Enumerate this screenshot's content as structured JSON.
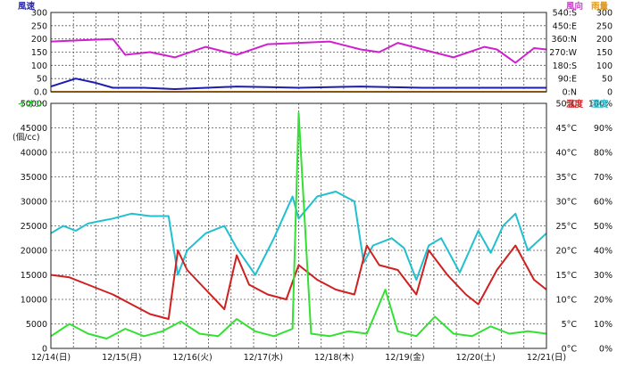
{
  "chart_data": [
    {
      "type": "line",
      "title": "",
      "left_axis": {
        "label": "風速",
        "label_color": "#2b2bb8",
        "ticks": [
          "300",
          "250",
          "200",
          "150",
          "100",
          "50",
          "0.0"
        ],
        "ylim": [
          0,
          300
        ]
      },
      "right_axes": [
        {
          "label": "風向",
          "label_color": "#d040d0",
          "ticks": [
            "540:S",
            "450:E",
            "360:N",
            "270:W",
            "180:S",
            "90:E",
            "0:N"
          ]
        },
        {
          "label": "雨量",
          "label_color": "#e09a20",
          "ticks": [
            "300",
            "250",
            "200",
            "150",
            "100",
            "50",
            "0"
          ]
        }
      ],
      "grid": true,
      "series": [
        {
          "name": "風向",
          "color": "#d020d0",
          "x": [
            0,
            0.5,
            1,
            1.2,
            1.6,
            2,
            2.5,
            3,
            3.5,
            4,
            4.5,
            5,
            5.3,
            5.6,
            6,
            6.5,
            7,
            7.2,
            7.5,
            7.8,
            8
          ],
          "y": [
            190,
            195,
            200,
            140,
            150,
            130,
            170,
            140,
            180,
            185,
            190,
            160,
            150,
            185,
            160,
            130,
            170,
            160,
            110,
            165,
            160
          ]
        },
        {
          "name": "風速",
          "color": "#1c1cb0",
          "x": [
            0,
            0.4,
            0.7,
            1,
            1.5,
            2,
            3,
            3.5,
            4,
            5,
            6,
            7,
            8
          ],
          "y": [
            20,
            50,
            35,
            15,
            15,
            10,
            20,
            18,
            15,
            20,
            15,
            15,
            15
          ]
        },
        {
          "name": "雨量",
          "color": "#f08a00",
          "x": [
            0,
            8
          ],
          "y": [
            0,
            0
          ]
        }
      ]
    },
    {
      "type": "line",
      "title": "",
      "left_axis": {
        "label": "イオン",
        "unit": "(個/cc)",
        "label_color": "#22cc22",
        "ticks": [
          "50000",
          "45000",
          "40000",
          "35000",
          "30000",
          "25000",
          "20000",
          "15000",
          "10000",
          "5000",
          "0"
        ],
        "ylim": [
          0,
          50000
        ]
      },
      "right_axes": [
        {
          "label": "温度",
          "label_color": "#d02020",
          "ticks": [
            "50°C",
            "45°C",
            "40°C",
            "35°C",
            "30°C",
            "25°C",
            "20°C",
            "15°C",
            "10°C",
            "5°C",
            "0°C"
          ],
          "ylim": [
            0,
            50
          ]
        },
        {
          "label": "湿度",
          "label_color": "#20b8c8",
          "ticks": [
            "100%",
            "90%",
            "80%",
            "70%",
            "60%",
            "50%",
            "40%",
            "30%",
            "20%",
            "10%",
            "0%"
          ],
          "ylim": [
            0,
            100
          ]
        }
      ],
      "x_ticks": [
        "12/14(日)",
        "12/15(月)",
        "12/16(火)",
        "12/17(水)",
        "12/18(木)",
        "12/19(金)",
        "12/20(土)",
        "12/21(日)"
      ],
      "grid": true,
      "series": [
        {
          "name": "湿度",
          "color": "#20c0d0",
          "x": [
            0,
            0.2,
            0.4,
            0.6,
            0.8,
            1.0,
            1.3,
            1.6,
            1.9,
            2.05,
            2.2,
            2.5,
            2.8,
            3.0,
            3.3,
            3.6,
            3.9,
            4.0,
            4.3,
            4.6,
            4.9,
            5.05,
            5.2,
            5.5,
            5.7,
            5.9,
            6.1,
            6.3,
            6.6,
            6.9,
            7.1,
            7.3,
            7.5,
            7.7,
            8.0
          ],
          "y": [
            47,
            50,
            48,
            51,
            52,
            53,
            55,
            54,
            54,
            30,
            40,
            47,
            50,
            41,
            30,
            45,
            62,
            53,
            62,
            64,
            60,
            35,
            42,
            45,
            41,
            28,
            42,
            45,
            31,
            48,
            39,
            50,
            55,
            40,
            47
          ]
        },
        {
          "name": "温度",
          "color": "#d02020",
          "x": [
            0,
            0.3,
            0.6,
            1.0,
            1.3,
            1.6,
            1.9,
            2.05,
            2.2,
            2.5,
            2.8,
            3.0,
            3.2,
            3.5,
            3.8,
            4.0,
            4.3,
            4.6,
            4.9,
            5.1,
            5.3,
            5.6,
            5.9,
            6.1,
            6.4,
            6.7,
            6.9,
            7.2,
            7.5,
            7.8,
            8.0
          ],
          "y": [
            15,
            14.5,
            13,
            11,
            9,
            7,
            6,
            20,
            16,
            12,
            8,
            19,
            13,
            11,
            10,
            17,
            14,
            12,
            11,
            21,
            17,
            16,
            11,
            20,
            15,
            11,
            9,
            16,
            21,
            14,
            12
          ]
        },
        {
          "name": "イオン",
          "color": "#33e033",
          "x": [
            0,
            0.3,
            0.6,
            0.9,
            1.2,
            1.5,
            1.8,
            2.1,
            2.4,
            2.7,
            3.0,
            3.3,
            3.6,
            3.9,
            4.0,
            4.2,
            4.5,
            4.8,
            5.1,
            5.4,
            5.6,
            5.9,
            6.2,
            6.5,
            6.8,
            7.1,
            7.4,
            7.7,
            8.0
          ],
          "y": [
            2500,
            5000,
            3000,
            2000,
            4000,
            2500,
            3500,
            5500,
            3000,
            2500,
            6000,
            3500,
            2500,
            4000,
            48000,
            3000,
            2500,
            3500,
            3000,
            12000,
            3500,
            2500,
            6500,
            3000,
            2500,
            4500,
            3000,
            3500,
            3000
          ]
        }
      ]
    }
  ]
}
